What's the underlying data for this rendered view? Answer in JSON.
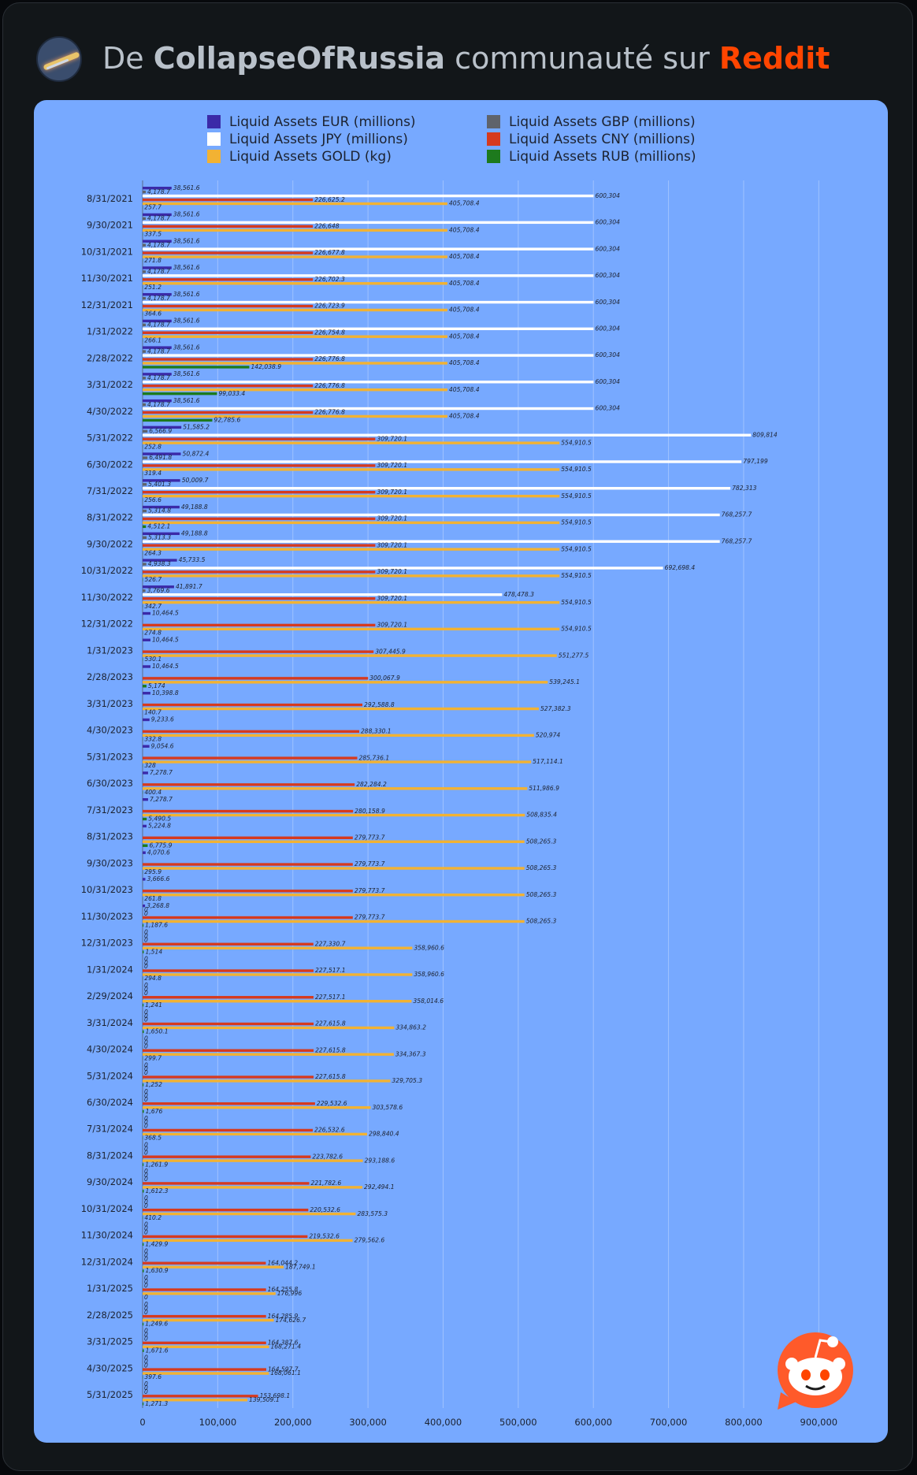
{
  "header": {
    "prefix": "De",
    "community": "CollapseOfRussia",
    "middle": "communauté sur",
    "brand": "Reddit"
  },
  "colors": {
    "eur": "#3b2aa8",
    "gbp": "#5f636b",
    "jpy": "#ffffff",
    "cny": "#d63a1e",
    "gold": "#f2b233",
    "rub": "#1d7a1d",
    "background": "#77a9ff",
    "brand": "#ff4500"
  },
  "icons": {
    "avatar": "community-avatar-icon",
    "mascot": "reddit-snoo-icon"
  },
  "chart_data": {
    "type": "bar",
    "orientation": "horizontal",
    "legend": {
      "position": "top",
      "items": [
        {
          "key": "eur",
          "label": "Liquid Assets EUR (millions)"
        },
        {
          "key": "gbp",
          "label": "Liquid Assets GBP (millions)"
        },
        {
          "key": "jpy",
          "label": "Liquid Assets JPY (millions)"
        },
        {
          "key": "cny",
          "label": "Liquid Assets CNY (millions)"
        },
        {
          "key": "gold",
          "label": "Liquid Assets GOLD (kg)"
        },
        {
          "key": "rub",
          "label": "Liquid Assets RUB (millions)"
        }
      ]
    },
    "xlim": [
      0,
      950000
    ],
    "xticks": [
      0,
      100000,
      200000,
      300000,
      400000,
      500000,
      600000,
      700000,
      800000,
      900000
    ],
    "xtick_labels": [
      "0",
      "100,000",
      "200,000",
      "300,000",
      "400,000",
      "500,000",
      "600,000",
      "700,000",
      "800,000",
      "900,000"
    ],
    "grid": true,
    "series_order": [
      "eur",
      "gbp",
      "jpy",
      "cny",
      "gold",
      "rub"
    ],
    "rows": [
      {
        "date": "8/31/2021",
        "eur": 38561.6,
        "gbp": 4178.7,
        "jpy": 600304,
        "cny": 226625.2,
        "gold": 405708.4,
        "rub": 257.7,
        "labels": {
          "eur": "38,561.6",
          "gbp": "4,178.7",
          "jpy": "600,304",
          "cny": "226,625.2",
          "gold": "405,708.4",
          "rub": "257.7"
        }
      },
      {
        "date": "9/30/2021",
        "eur": 38561.6,
        "gbp": 4178.7,
        "jpy": 600304,
        "cny": 226648,
        "gold": 405708.4,
        "rub": 337.5,
        "labels": {
          "eur": "38,561.6",
          "gbp": "4,178.7",
          "jpy": "600,304",
          "cny": "226,648",
          "gold": "405,708.4",
          "rub": "337.5"
        }
      },
      {
        "date": "10/31/2021",
        "eur": 38561.6,
        "gbp": 4178.7,
        "jpy": 600304,
        "cny": 226677.8,
        "gold": 405708.4,
        "rub": 271.8,
        "labels": {
          "eur": "38,561.6",
          "gbp": "4,178.7",
          "jpy": "600,304",
          "cny": "226,677.8",
          "gold": "405,708.4",
          "rub": "271.8"
        }
      },
      {
        "date": "11/30/2021",
        "eur": 38561.6,
        "gbp": 4178.7,
        "jpy": 600304,
        "cny": 226702.3,
        "gold": 405708.4,
        "rub": 251.2,
        "labels": {
          "eur": "38,561.6",
          "gbp": "4,178.7",
          "jpy": "600,304",
          "cny": "226,702.3",
          "gold": "405,708.4",
          "rub": "251.2"
        }
      },
      {
        "date": "12/31/2021",
        "eur": 38561.6,
        "gbp": 4178.7,
        "jpy": 600304,
        "cny": 226723.9,
        "gold": 405708.4,
        "rub": 364.6,
        "labels": {
          "eur": "38,561.6",
          "gbp": "4,178.7",
          "jpy": "600,304",
          "cny": "226,723.9",
          "gold": "405,708.4",
          "rub": "364.6"
        }
      },
      {
        "date": "1/31/2022",
        "eur": 38561.6,
        "gbp": 4178.7,
        "jpy": 600304,
        "cny": 226754.8,
        "gold": 405708.4,
        "rub": 266.1,
        "labels": {
          "eur": "38,561.6",
          "gbp": "4,178.7",
          "jpy": "600,304",
          "cny": "226,754.8",
          "gold": "405,708.4",
          "rub": "266.1"
        }
      },
      {
        "date": "2/28/2022",
        "eur": 38561.6,
        "gbp": 4178.7,
        "jpy": 600304,
        "cny": 226776.8,
        "gold": 405708.4,
        "rub": 142038.9,
        "labels": {
          "eur": "38,561.6",
          "gbp": "4,178.7",
          "jpy": "600,304",
          "cny": "226,776.8",
          "gold": "405,708.4",
          "rub": "142,038.9"
        }
      },
      {
        "date": "3/31/2022",
        "eur": 38561.6,
        "gbp": 4178.7,
        "jpy": 600304,
        "cny": 226776.8,
        "gold": 405708.4,
        "rub": 99033.4,
        "labels": {
          "eur": "38,561.6",
          "gbp": "4,178.7",
          "jpy": "600,304",
          "cny": "226,776.8",
          "gold": "405,708.4",
          "rub": "99,033.4"
        }
      },
      {
        "date": "4/30/2022",
        "eur": 38561.6,
        "gbp": 4178.7,
        "jpy": 600304,
        "cny": 226776.8,
        "gold": 405708.4,
        "rub": 92785.6,
        "labels": {
          "eur": "38,561.6",
          "gbp": "4,178.7",
          "jpy": "600,304",
          "cny": "226,776.8",
          "gold": "405,708.4",
          "rub": "92,785.6"
        }
      },
      {
        "date": "5/31/2022",
        "eur": 51585.2,
        "gbp": 6566.9,
        "jpy": 809814,
        "cny": 309720.1,
        "gold": 554910.5,
        "rub": 252.8,
        "labels": {
          "eur": "51,585.2",
          "gbp": "6,566.9",
          "jpy": "809,814",
          "cny": "309,720.1",
          "gold": "554,910.5",
          "rub": "252.8"
        }
      },
      {
        "date": "6/30/2022",
        "eur": 50872.4,
        "gbp": 6491.8,
        "jpy": 797199,
        "cny": 309720.1,
        "gold": 554910.5,
        "rub": 319.4,
        "labels": {
          "eur": "50,872.4",
          "gbp": "6,491.8",
          "jpy": "797,199",
          "cny": "309,720.1",
          "gold": "554,910.5",
          "rub": "319.4"
        }
      },
      {
        "date": "7/31/2022",
        "eur": 50009.7,
        "gbp": 5401.3,
        "jpy": 782313,
        "cny": 309720.1,
        "gold": 554910.5,
        "rub": 256.6,
        "labels": {
          "eur": "50,009.7",
          "gbp": "5,401.3",
          "jpy": "782,313",
          "cny": "309,720.1",
          "gold": "554,910.5",
          "rub": "256.6"
        }
      },
      {
        "date": "8/31/2022",
        "eur": 49188.8,
        "gbp": 5314.8,
        "jpy": 768257.7,
        "cny": 309720.1,
        "gold": 554910.5,
        "rub": 4512.1,
        "labels": {
          "eur": "49,188.8",
          "gbp": "5,314.8",
          "jpy": "768,257.7",
          "cny": "309,720.1",
          "gold": "554,910.5",
          "rub": "4,512.1"
        }
      },
      {
        "date": "9/30/2022",
        "eur": 49188.8,
        "gbp": 5313.3,
        "jpy": 768257.7,
        "cny": 309720.1,
        "gold": 554910.5,
        "rub": 264.3,
        "labels": {
          "eur": "49,188.8",
          "gbp": "5,313.3",
          "jpy": "768,257.7",
          "cny": "309,720.1",
          "gold": "554,910.5",
          "rub": "264.3"
        }
      },
      {
        "date": "10/31/2022",
        "eur": 45733.5,
        "gbp": 4938.3,
        "jpy": 692698.4,
        "cny": 309720.1,
        "gold": 554910.5,
        "rub": 526.7,
        "labels": {
          "eur": "45,733.5",
          "gbp": "4,938.3",
          "jpy": "692,698.4",
          "cny": "309,720.1",
          "gold": "554,910.5",
          "rub": "526.7"
        }
      },
      {
        "date": "11/30/2022",
        "eur": 41891.7,
        "gbp": 3769.6,
        "jpy": 478478.3,
        "cny": 309720.1,
        "gold": 554910.5,
        "rub": 342.7,
        "labels": {
          "eur": "41,891.7",
          "gbp": "3,769.6",
          "jpy": "478,478.3",
          "cny": "309,720.1",
          "gold": "554,910.5",
          "rub": "342.7"
        }
      },
      {
        "date": "12/31/2022",
        "eur": 10464.5,
        "gbp": 0,
        "jpy": 0,
        "cny": 309720.1,
        "gold": 554910.5,
        "rub": 274.8,
        "labels": {
          "eur": "10,464.5",
          "gbp": "",
          "jpy": "",
          "cny": "309,720.1",
          "gold": "554,910.5",
          "rub": "274.8"
        }
      },
      {
        "date": "1/31/2023",
        "eur": 10464.5,
        "gbp": 0,
        "jpy": 0,
        "cny": 307445.9,
        "gold": 551277.5,
        "rub": 530.1,
        "labels": {
          "eur": "10,464.5",
          "gbp": "",
          "jpy": "",
          "cny": "307,445.9",
          "gold": "551,277.5",
          "rub": "530.1"
        }
      },
      {
        "date": "2/28/2023",
        "eur": 10464.5,
        "gbp": 0,
        "jpy": 0,
        "cny": 300067.9,
        "gold": 539245.1,
        "rub": 5174,
        "labels": {
          "eur": "10,464.5",
          "gbp": "",
          "jpy": "",
          "cny": "300,067.9",
          "gold": "539,245.1",
          "rub": "5,174"
        }
      },
      {
        "date": "3/31/2023",
        "eur": 10398.8,
        "gbp": 0,
        "jpy": 0,
        "cny": 292588.8,
        "gold": 527382.3,
        "rub": 140.7,
        "labels": {
          "eur": "10,398.8",
          "gbp": "",
          "jpy": "",
          "cny": "292,588.8",
          "gold": "527,382.3",
          "rub": "140.7"
        }
      },
      {
        "date": "4/30/2023",
        "eur": 9233.6,
        "gbp": 0,
        "jpy": 0,
        "cny": 288330.1,
        "gold": 520974,
        "rub": 332.8,
        "labels": {
          "eur": "9,233.6",
          "gbp": "",
          "jpy": "",
          "cny": "288,330.1",
          "gold": "520,974",
          "rub": "332.8"
        }
      },
      {
        "date": "5/31/2023",
        "eur": 9054.6,
        "gbp": 0,
        "jpy": 0,
        "cny": 285736.1,
        "gold": 517114.1,
        "rub": 328,
        "labels": {
          "eur": "9,054.6",
          "gbp": "",
          "jpy": "",
          "cny": "285,736.1",
          "gold": "517,114.1",
          "rub": "328"
        }
      },
      {
        "date": "6/30/2023",
        "eur": 7278.7,
        "gbp": 0,
        "jpy": 0,
        "cny": 282284.2,
        "gold": 511986.9,
        "rub": 400.4,
        "labels": {
          "eur": "7,278.7",
          "gbp": "",
          "jpy": "",
          "cny": "282,284.2",
          "gold": "511,986.9",
          "rub": "400.4"
        }
      },
      {
        "date": "7/31/2023",
        "eur": 7278.7,
        "gbp": 0,
        "jpy": 0,
        "cny": 280158.9,
        "gold": 508835.4,
        "rub": 5490.5,
        "labels": {
          "eur": "7,278.7",
          "gbp": "",
          "jpy": "",
          "cny": "280,158.9",
          "gold": "508,835.4",
          "rub": "5,490.5"
        }
      },
      {
        "date": "8/31/2023",
        "eur": 5224.8,
        "gbp": 0,
        "jpy": 0,
        "cny": 279773.7,
        "gold": 508265.3,
        "rub": 6775.9,
        "labels": {
          "eur": "5,224.8",
          "gbp": "",
          "jpy": "",
          "cny": "279,773.7",
          "gold": "508,265.3",
          "rub": "6,775.9"
        }
      },
      {
        "date": "9/30/2023",
        "eur": 4070.6,
        "gbp": 0,
        "jpy": 0,
        "cny": 279773.7,
        "gold": 508265.3,
        "rub": 295.9,
        "labels": {
          "eur": "4,070.6",
          "gbp": "",
          "jpy": "",
          "cny": "279,773.7",
          "gold": "508,265.3",
          "rub": "295.9"
        }
      },
      {
        "date": "10/31/2023",
        "eur": 3666.6,
        "gbp": 0,
        "jpy": 0,
        "cny": 279773.7,
        "gold": 508265.3,
        "rub": 261.8,
        "labels": {
          "eur": "3,666.6",
          "gbp": "",
          "jpy": "",
          "cny": "279,773.7",
          "gold": "508,265.3",
          "rub": "261.8"
        }
      },
      {
        "date": "11/30/2023",
        "eur": 3268.8,
        "gbp": 0,
        "jpy": 0,
        "cny": 279773.7,
        "gold": 508265.3,
        "rub": 1187.6,
        "labels": {
          "eur": "3,268.8",
          "gbp": "0",
          "jpy": "0",
          "cny": "279,773.7",
          "gold": "508,265.3",
          "rub": "1,187.6"
        }
      },
      {
        "date": "12/31/2023",
        "eur": 0,
        "gbp": 0,
        "jpy": 0,
        "cny": 227330.7,
        "gold": 358960.6,
        "rub": 1514,
        "labels": {
          "eur": "0",
          "gbp": "0",
          "jpy": "0",
          "cny": "227,330.7",
          "gold": "358,960.6",
          "rub": "1,514"
        }
      },
      {
        "date": "1/31/2024",
        "eur": 0,
        "gbp": 0,
        "jpy": 0,
        "cny": 227517.1,
        "gold": 358960.6,
        "rub": 294.8,
        "labels": {
          "eur": "0",
          "gbp": "0",
          "jpy": "0",
          "cny": "227,517.1",
          "gold": "358,960.6",
          "rub": "294.8"
        }
      },
      {
        "date": "2/29/2024",
        "eur": 0,
        "gbp": 0,
        "jpy": 0,
        "cny": 227517.1,
        "gold": 358014.6,
        "rub": 1241,
        "labels": {
          "eur": "0",
          "gbp": "0",
          "jpy": "0",
          "cny": "227,517.1",
          "gold": "358,014.6",
          "rub": "1,241"
        }
      },
      {
        "date": "3/31/2024",
        "eur": 0,
        "gbp": 0,
        "jpy": 0,
        "cny": 227615.8,
        "gold": 334863.2,
        "rub": 1650.1,
        "labels": {
          "eur": "0",
          "gbp": "0",
          "jpy": "0",
          "cny": "227,615.8",
          "gold": "334,863.2",
          "rub": "1,650.1"
        }
      },
      {
        "date": "4/30/2024",
        "eur": 0,
        "gbp": 0,
        "jpy": 0,
        "cny": 227615.8,
        "gold": 334367.3,
        "rub": 299.7,
        "labels": {
          "eur": "0",
          "gbp": "0",
          "jpy": "0",
          "cny": "227,615.8",
          "gold": "334,367.3",
          "rub": "299.7"
        }
      },
      {
        "date": "5/31/2024",
        "eur": 0,
        "gbp": 0,
        "jpy": 0,
        "cny": 227615.8,
        "gold": 329705.3,
        "rub": 1252,
        "labels": {
          "eur": "0",
          "gbp": "0",
          "jpy": "0",
          "cny": "227,615.8",
          "gold": "329,705.3",
          "rub": "1,252"
        }
      },
      {
        "date": "6/30/2024",
        "eur": 0,
        "gbp": 0,
        "jpy": 0,
        "cny": 229532.6,
        "gold": 303578.6,
        "rub": 1676,
        "labels": {
          "eur": "0",
          "gbp": "0",
          "jpy": "0",
          "cny": "229,532.6",
          "gold": "303,578.6",
          "rub": "1,676"
        }
      },
      {
        "date": "7/31/2024",
        "eur": 0,
        "gbp": 0,
        "jpy": 0,
        "cny": 226532.6,
        "gold": 298840.4,
        "rub": 368.5,
        "labels": {
          "eur": "0",
          "gbp": "0",
          "jpy": "0",
          "cny": "226,532.6",
          "gold": "298,840.4",
          "rub": "368.5"
        }
      },
      {
        "date": "8/31/2024",
        "eur": 0,
        "gbp": 0,
        "jpy": 0,
        "cny": 223782.6,
        "gold": 293188.6,
        "rub": 1261.9,
        "labels": {
          "eur": "0",
          "gbp": "0",
          "jpy": "0",
          "cny": "223,782.6",
          "gold": "293,188.6",
          "rub": "1,261.9"
        }
      },
      {
        "date": "9/30/2024",
        "eur": 0,
        "gbp": 0,
        "jpy": 0,
        "cny": 221782.6,
        "gold": 292494.1,
        "rub": 1612.3,
        "labels": {
          "eur": "0",
          "gbp": "0",
          "jpy": "0",
          "cny": "221,782.6",
          "gold": "292,494.1",
          "rub": "1,612.3"
        }
      },
      {
        "date": "10/31/2024",
        "eur": 0,
        "gbp": 0,
        "jpy": 0,
        "cny": 220532.6,
        "gold": 283575.3,
        "rub": 410.2,
        "labels": {
          "eur": "0",
          "gbp": "0",
          "jpy": "0",
          "cny": "220,532.6",
          "gold": "283,575.3",
          "rub": "410.2"
        }
      },
      {
        "date": "11/30/2024",
        "eur": 0,
        "gbp": 0,
        "jpy": 0,
        "cny": 219532.6,
        "gold": 279562.6,
        "rub": 1429.9,
        "labels": {
          "eur": "0",
          "gbp": "0",
          "jpy": "0",
          "cny": "219,532.6",
          "gold": "279,562.6",
          "rub": "1,429.9"
        }
      },
      {
        "date": "12/31/2024",
        "eur": 0,
        "gbp": 0,
        "jpy": 0,
        "cny": 164044.2,
        "gold": 187749.1,
        "rub": 1630.9,
        "labels": {
          "eur": "0",
          "gbp": "0",
          "jpy": "0",
          "cny": "164,044.2",
          "gold": "187,749.1",
          "rub": "1,630.9"
        }
      },
      {
        "date": "1/31/2025",
        "eur": 0,
        "gbp": 0,
        "jpy": 0,
        "cny": 164255.8,
        "gold": 176996,
        "rub": 0,
        "labels": {
          "eur": "0",
          "gbp": "0",
          "jpy": "0",
          "cny": "164,255.8",
          "gold": "176,996",
          "rub": "0"
        }
      },
      {
        "date": "2/28/2025",
        "eur": 0,
        "gbp": 0,
        "jpy": 0,
        "cny": 164285.9,
        "gold": 174626.7,
        "rub": 1249.6,
        "labels": {
          "eur": "0",
          "gbp": "0",
          "jpy": "0",
          "cny": "164,285.9",
          "gold": "174,626.7",
          "rub": "1,249.6"
        }
      },
      {
        "date": "3/31/2025",
        "eur": 0,
        "gbp": 0,
        "jpy": 0,
        "cny": 164387.6,
        "gold": 168271.4,
        "rub": 1671.6,
        "labels": {
          "eur": "0",
          "gbp": "0",
          "jpy": "0",
          "cny": "164,387.6",
          "gold": "168,271.4",
          "rub": "1,671.6"
        }
      },
      {
        "date": "4/30/2025",
        "eur": 0,
        "gbp": 0,
        "jpy": 0,
        "cny": 164597.7,
        "gold": 168061.1,
        "rub": 397.6,
        "labels": {
          "eur": "0",
          "gbp": "0",
          "jpy": "0",
          "cny": "164,597.7",
          "gold": "168,061.1",
          "rub": "397.6"
        }
      },
      {
        "date": "5/31/2025",
        "eur": 0,
        "gbp": 0,
        "jpy": 0,
        "cny": 153698.1,
        "gold": 139509.1,
        "rub": 1271.3,
        "labels": {
          "eur": "0",
          "gbp": "0",
          "jpy": "0",
          "cny": "153,698.1",
          "gold": "139,509.1",
          "rub": "1,271.3"
        }
      }
    ]
  }
}
